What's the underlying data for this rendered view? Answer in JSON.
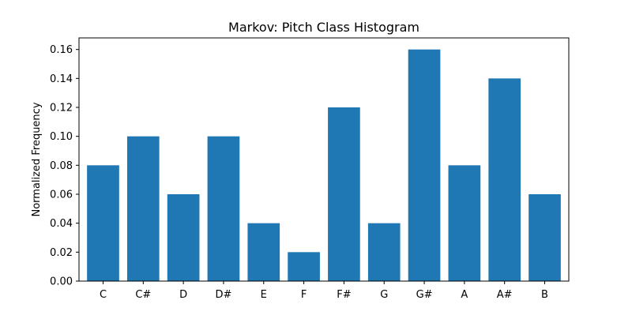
{
  "chart_data": {
    "type": "bar",
    "title": "Markov: Pitch Class Histogram",
    "xlabel": "",
    "ylabel": "Normalized Frequency",
    "categories": [
      "C",
      "C#",
      "D",
      "D#",
      "E",
      "F",
      "F#",
      "G",
      "G#",
      "A",
      "A#",
      "B"
    ],
    "values": [
      0.08,
      0.1,
      0.06,
      0.1,
      0.04,
      0.02,
      0.12,
      0.04,
      0.16,
      0.08,
      0.14,
      0.06
    ],
    "ylim": [
      0,
      0.168
    ],
    "yticks": [
      "0.00",
      "0.02",
      "0.04",
      "0.06",
      "0.08",
      "0.10",
      "0.12",
      "0.14",
      "0.16"
    ],
    "grid": false,
    "bar_color": "#1f77b4"
  }
}
